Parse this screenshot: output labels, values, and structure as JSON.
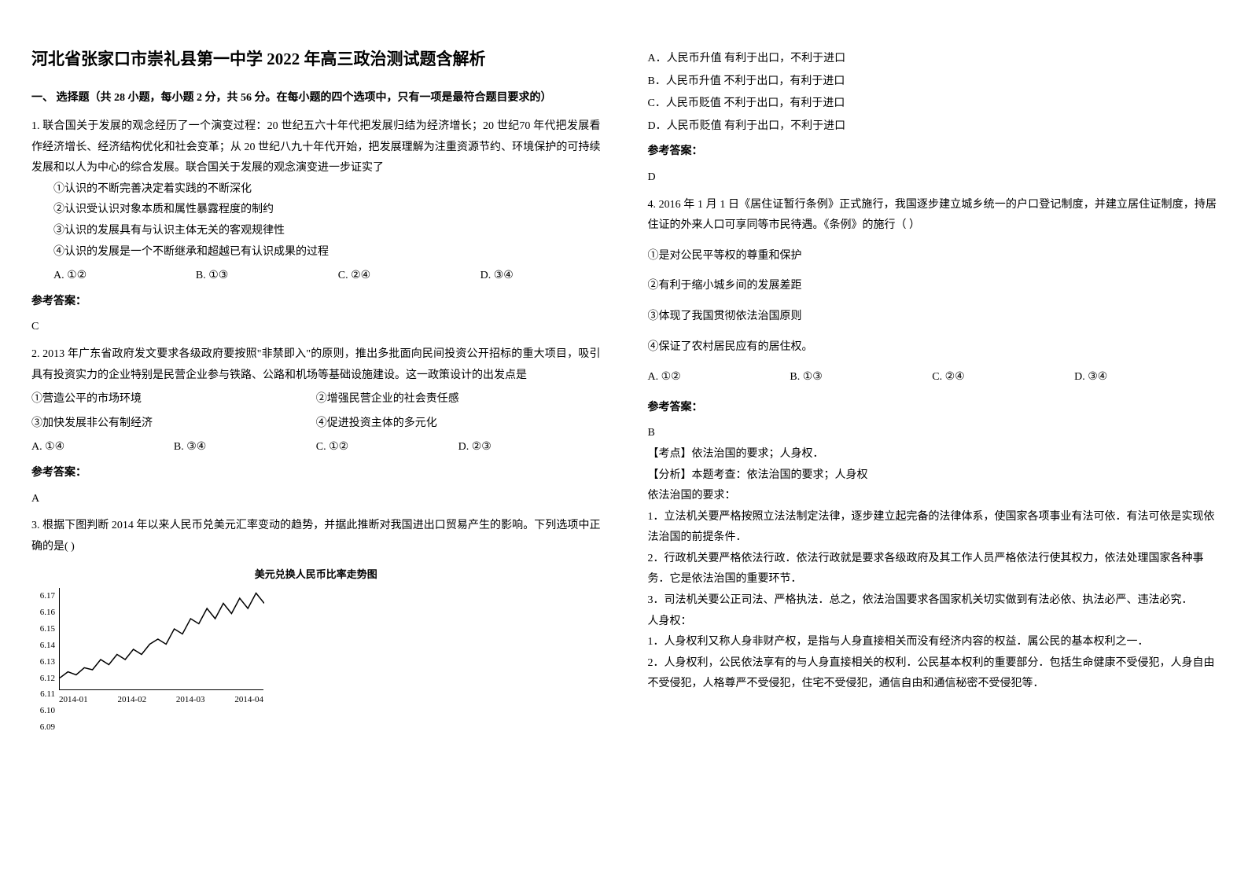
{
  "title": "河北省张家口市崇礼县第一中学 2022 年高三政治测试题含解析",
  "section1_header": "一、 选择题（共 28 小题，每小题 2 分，共 56 分。在每小题的四个选项中，只有一项是最符合题目要求的）",
  "q1": {
    "stem": "1. 联合国关于发展的观念经历了一个演变过程：20 世纪五六十年代把发展归结为经济增长；20 世纪70 年代把发展看作经济增长、经济结构优化和社会变革；从 20 世纪八九十年代开始，把发展理解为注重资源节约、环境保护的可持续发展和以人为中心的综合发展。联合国关于发展的观念演变进一步证实了",
    "sub1": "①认识的不断完善决定着实践的不断深化",
    "sub2": "②认识受认识对象本质和属性暴露程度的制约",
    "sub3": "③认识的发展具有与认识主体无关的客观规律性",
    "sub4": "④认识的发展是一个不断继承和超越已有认识成果的过程",
    "optA": "A. ①②",
    "optB": "B. ①③",
    "optC": "C. ②④",
    "optD": "D. ③④",
    "answer_label": "参考答案：",
    "answer": "C"
  },
  "q2": {
    "stem": "2. 2013 年广东省政府发文要求各级政府要按照\"非禁即入\"的原则，推出多批面向民间投资公开招标的重大项目，吸引具有投资实力的企业特别是民营企业参与铁路、公路和机场等基础设施建设。这一政策设计的出发点是",
    "sub1": "①营造公平的市场环境",
    "sub2": "②增强民营企业的社会责任感",
    "sub3": "③加快发展非公有制经济",
    "sub4": "④促进投资主体的多元化",
    "optA": "A. ①④",
    "optB": "B. ③④",
    "optC": "C. ①②",
    "optD": "D. ②③",
    "answer_label": "参考答案：",
    "answer": "A"
  },
  "q3": {
    "stem": "3. 根据下图判断 2014 年以来人民币兑美元汇率变动的趋势，并据此推断对我国进出口贸易产生的影响。下列选项中正确的是(    )",
    "chart": {
      "title": "美元兑换人民币比率走势图",
      "y_labels": [
        "6.17",
        "6.16",
        "6.15",
        "6.14",
        "6.13",
        "6.12",
        "6.11",
        "6.10",
        "6.09"
      ],
      "x_labels": [
        "2014-01",
        "2014-02",
        "2014-03",
        "2014-04"
      ],
      "line_color": "#000000",
      "background": "#ffffff",
      "points": [
        [
          0,
          0.88
        ],
        [
          0.04,
          0.82
        ],
        [
          0.08,
          0.85
        ],
        [
          0.12,
          0.78
        ],
        [
          0.16,
          0.8
        ],
        [
          0.2,
          0.7
        ],
        [
          0.24,
          0.75
        ],
        [
          0.28,
          0.65
        ],
        [
          0.32,
          0.7
        ],
        [
          0.36,
          0.6
        ],
        [
          0.4,
          0.65
        ],
        [
          0.44,
          0.55
        ],
        [
          0.48,
          0.5
        ],
        [
          0.52,
          0.55
        ],
        [
          0.56,
          0.4
        ],
        [
          0.6,
          0.45
        ],
        [
          0.64,
          0.3
        ],
        [
          0.68,
          0.35
        ],
        [
          0.72,
          0.2
        ],
        [
          0.76,
          0.3
        ],
        [
          0.8,
          0.15
        ],
        [
          0.84,
          0.25
        ],
        [
          0.88,
          0.1
        ],
        [
          0.92,
          0.2
        ],
        [
          0.96,
          0.05
        ],
        [
          1.0,
          0.15
        ]
      ]
    },
    "optA": "A．人民币升值  有利于出口，不利于进口",
    "optB": "B．人民币升值  不利于出口，有利于进口",
    "optC": "C．人民币贬值  不利于出口，有利于进口",
    "optD": "D．人民币贬值  有利于出口，不利于进口",
    "answer_label": "参考答案：",
    "answer": "D"
  },
  "q4": {
    "stem": "4. 2016 年 1 月 1 日《居住证暂行条例》正式施行，我国逐步建立城乡统一的户口登记制度，并建立居住证制度，持居住证的外来人口可享同等市民待遇。《条例》的施行（     ）",
    "sub1": "①是对公民平等权的尊重和保护",
    "sub2": "②有利于缩小城乡间的发展差距",
    "sub3": "③体现了我国贯彻依法治国原则",
    "sub4": "④保证了农村居民应有的居住权。",
    "optA": "A. ①②",
    "optB": "B. ①③",
    "optC": "C. ②④",
    "optD": "D. ③④",
    "answer_label": "参考答案：",
    "answer": "B",
    "exp1": "【考点】依法治国的要求；人身权．",
    "exp2": "【分析】本题考查：依法治国的要求；人身权",
    "exp3": "依法治国的要求：",
    "exp4": "1．立法机关要严格按照立法法制定法律，逐步建立起完备的法律体系，使国家各项事业有法可依．有法可依是实现依法治国的前提条件．",
    "exp5": "2．行政机关要严格依法行政．依法行政就是要求各级政府及其工作人员严格依法行使其权力，依法处理国家各种事务．它是依法治国的重要环节．",
    "exp6": "3．司法机关要公正司法、严格执法．总之，依法治国要求各国家机关切实做到有法必依、执法必严、违法必究．",
    "exp7": "人身权：",
    "exp8": "1．人身权利又称人身非财产权，是指与人身直接相关而没有经济内容的权益．属公民的基本权利之一．",
    "exp9": "2．人身权利，公民依法享有的与人身直接相关的权利．公民基本权利的重要部分．包括生命健康不受侵犯，人身自由不受侵犯，人格尊严不受侵犯，住宅不受侵犯，通信自由和通信秘密不受侵犯等．"
  }
}
